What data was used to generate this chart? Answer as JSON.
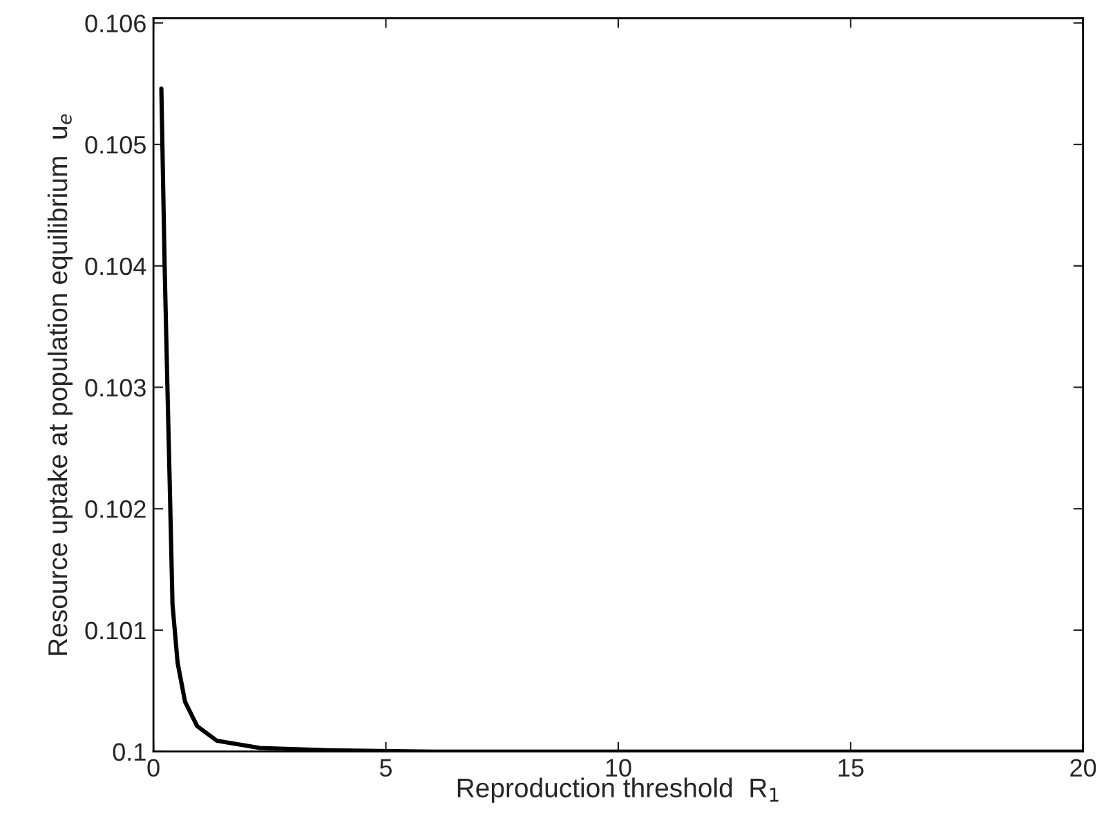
{
  "chart_data": {
    "type": "line",
    "xlabel": "Reproduction threshold  R$_{1}$",
    "ylabel": "Resource uptake at population equilibrium  u$_{e}$",
    "series": [
      {
        "color": "#000000",
        "x": [
          0.17,
          0.24,
          0.3,
          0.35,
          0.41,
          0.52,
          0.68,
          0.94,
          1.36,
          2.29,
          3.85,
          6,
          10,
          15,
          20
        ],
        "values": [
          0.10546,
          0.10401,
          0.10301,
          0.10221,
          0.10121,
          0.10073,
          0.10041,
          0.10021,
          0.10009,
          0.10003,
          0.10001,
          0.1,
          0.1,
          0.1,
          0.1
        ]
      }
    ],
    "xlim": [
      0,
      20
    ],
    "xticks": [
      0,
      5,
      10,
      15,
      20
    ],
    "ylim": [
      0.1,
      0.10604
    ],
    "yticks": [
      0.1,
      0.101,
      0.102,
      0.103,
      0.104,
      0.105,
      0.106
    ],
    "grid": false,
    "legend": false,
    "marker": "none",
    "line_style": "solid"
  }
}
